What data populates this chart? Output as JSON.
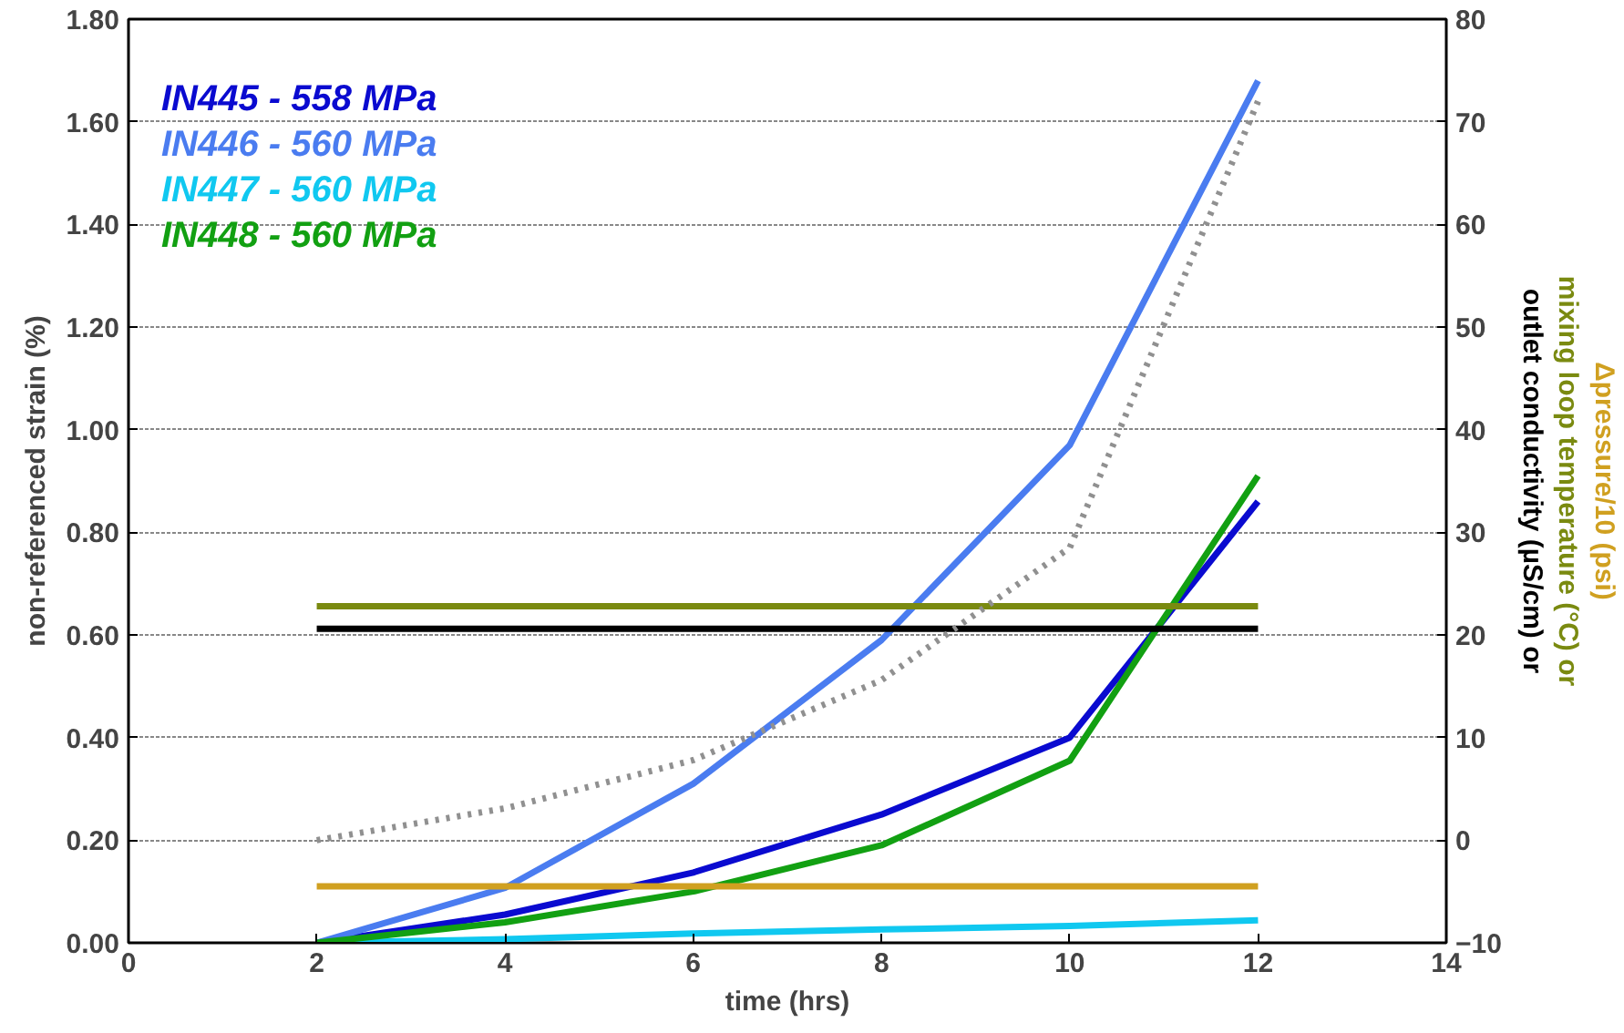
{
  "chart_data": {
    "type": "line",
    "xlabel": "time (hrs)",
    "ylabel": "non-referenced strain (%)",
    "y2label": "outlet conductivity (µS/cm) or\nmixing loop temperature (°C) or\nΔpressure/10 (psi)",
    "x": [
      2,
      4,
      6,
      8,
      10,
      12
    ],
    "series": [
      {
        "name": "IN445 - 558 MPa",
        "color": "#0a0ad0",
        "values": [
          0,
          0.055,
          0.137,
          0.25,
          0.4,
          0.86
        ]
      },
      {
        "name": "IN446 - 560 MPa",
        "color": "#4a7cf0",
        "values": [
          0,
          0.107,
          0.31,
          0.59,
          0.97,
          1.68
        ]
      },
      {
        "name": "IN447 - 560 MPa",
        "color": "#10c8f0",
        "values": [
          0,
          0.007,
          0.018,
          0.026,
          0.033,
          0.044
        ]
      },
      {
        "name": "IN448 - 560 MPa",
        "color": "#12a012",
        "values": [
          0,
          0.04,
          0.1,
          0.19,
          0.355,
          0.91
        ]
      },
      {
        "color": "#000000",
        "axis": "y2",
        "x": [
          2,
          12
        ],
        "values": [
          20.6,
          20.6
        ]
      },
      {
        "color": "#7a8a10",
        "axis": "y2",
        "x": [
          2,
          12
        ],
        "values": [
          22.8,
          22.8
        ]
      },
      {
        "color": "#d0a020",
        "axis": "y2",
        "x": [
          2,
          12
        ],
        "values": [
          -4.5,
          -4.5
        ]
      },
      {
        "color": "#909090",
        "axis": "y2",
        "line_style": "dotted",
        "x": [
          2,
          4,
          6,
          8,
          10,
          12
        ],
        "values": [
          0,
          3.1,
          7.8,
          15.6,
          28.5,
          72
        ]
      }
    ],
    "xlim": [
      0,
      14
    ],
    "xticks": [
      0,
      2,
      4,
      6,
      8,
      10,
      12,
      14
    ],
    "ylim": [
      0,
      1.8
    ],
    "yticks": [
      {
        "value": 0,
        "label": "0.00"
      },
      {
        "value": 0.2,
        "label": "0.20"
      },
      {
        "value": 0.4,
        "label": "0.40"
      },
      {
        "value": 0.6,
        "label": "0.60"
      },
      {
        "value": 0.8,
        "label": "0.80"
      },
      {
        "value": 1.0,
        "label": "1.00"
      },
      {
        "value": 1.2,
        "label": "1.20"
      },
      {
        "value": 1.4,
        "label": "1.40"
      },
      {
        "value": 1.6,
        "label": "1.60"
      },
      {
        "value": 1.8,
        "label": "1.80"
      }
    ],
    "y2lim": [
      -10,
      80
    ],
    "y2ticks": [
      -10,
      0,
      10,
      20,
      30,
      40,
      50,
      60,
      70,
      80
    ],
    "grid": "y",
    "legend": "top left"
  }
}
